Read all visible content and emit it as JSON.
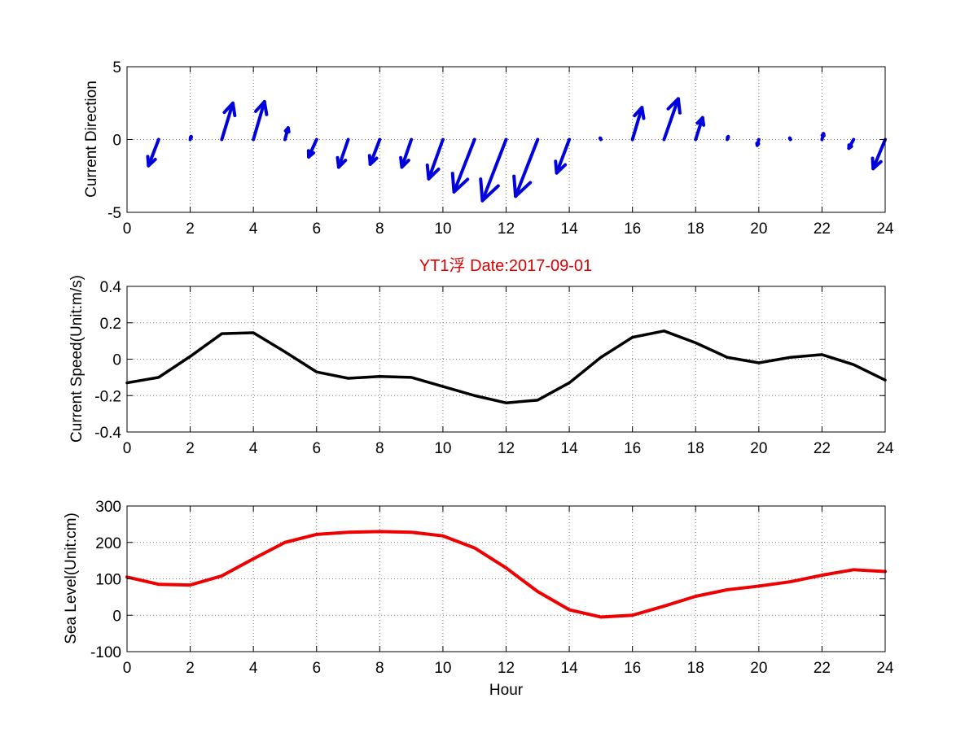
{
  "title": "YT1浮    Date:2017-09-01",
  "colors": {
    "title": "#dd0000",
    "quiver": "#0000dd",
    "speed": "#000000",
    "sea_level": "#ee0000",
    "axis": "#000000",
    "grid": "#777777",
    "background": "#ffffff"
  },
  "chart_data": [
    {
      "type": "quiver",
      "title": "",
      "xlabel": "",
      "ylabel": "Current Direction",
      "xlim": [
        0,
        24
      ],
      "ylim": [
        -5,
        5
      ],
      "xticks": [
        "0",
        "2",
        "4",
        "6",
        "8",
        "10",
        "12",
        "14",
        "16",
        "18",
        "20",
        "22",
        "24"
      ],
      "yticks": [
        "-5",
        "0",
        "5"
      ],
      "grid": true,
      "x": [
        1,
        2,
        3,
        4,
        5,
        6,
        7,
        8,
        9,
        10,
        11,
        12,
        13,
        14,
        15,
        16,
        17,
        18,
        19,
        20,
        21,
        22,
        23,
        24
      ],
      "u": [
        -0.32,
        0.03,
        0.35,
        0.35,
        0.1,
        -0.25,
        -0.3,
        -0.3,
        -0.3,
        -0.45,
        -0.65,
        -0.75,
        -0.7,
        -0.4,
        -0.02,
        0.3,
        0.45,
        0.22,
        0.03,
        -0.05,
        -0.02,
        0.05,
        -0.15,
        -0.38
      ],
      "v": [
        -1.8,
        0.2,
        2.5,
        2.6,
        0.8,
        -1.2,
        -1.9,
        -1.7,
        -1.9,
        -2.7,
        -3.6,
        -4.2,
        -3.9,
        -2.3,
        0.1,
        2.2,
        2.8,
        1.5,
        0.2,
        -0.4,
        0.1,
        0.4,
        -0.6,
        -2.0
      ],
      "units": "data"
    },
    {
      "type": "line",
      "title": "",
      "xlabel": "",
      "ylabel": "Current Speed(Unit:m/s)",
      "xlim": [
        0,
        24
      ],
      "ylim": [
        -0.4,
        0.4
      ],
      "xticks": [
        "0",
        "2",
        "4",
        "6",
        "8",
        "10",
        "12",
        "14",
        "16",
        "18",
        "20",
        "22",
        "24"
      ],
      "yticks": [
        "-0.4",
        "-0.2",
        "0",
        "0.2",
        "0.4"
      ],
      "grid": true,
      "x": [
        0,
        1,
        2,
        3,
        4,
        5,
        6,
        7,
        8,
        9,
        10,
        11,
        12,
        13,
        14,
        15,
        16,
        17,
        18,
        19,
        20,
        21,
        22,
        23,
        24
      ],
      "series": [
        {
          "values": [
            -0.13,
            -0.1,
            0.015,
            0.14,
            0.145,
            0.04,
            -0.07,
            -0.105,
            -0.095,
            -0.1,
            -0.15,
            -0.2,
            -0.24,
            -0.225,
            -0.13,
            0.01,
            0.12,
            0.155,
            0.09,
            0.01,
            -0.02,
            0.01,
            0.025,
            -0.03,
            -0.115
          ]
        }
      ]
    },
    {
      "type": "line",
      "title": "",
      "xlabel": "Hour",
      "ylabel": "Sea Level(Unit:cm)",
      "xlim": [
        0,
        24
      ],
      "ylim": [
        -100,
        300
      ],
      "xticks": [
        "0",
        "2",
        "4",
        "6",
        "8",
        "10",
        "12",
        "14",
        "16",
        "18",
        "20",
        "22",
        "24"
      ],
      "yticks": [
        "-100",
        "0",
        "100",
        "200",
        "300"
      ],
      "grid": true,
      "x": [
        0,
        1,
        2,
        3,
        4,
        5,
        6,
        7,
        8,
        9,
        10,
        11,
        12,
        13,
        14,
        15,
        16,
        17,
        18,
        19,
        20,
        21,
        22,
        23,
        24
      ],
      "series": [
        {
          "values": [
            105,
            85,
            83,
            108,
            155,
            200,
            222,
            228,
            230,
            228,
            218,
            185,
            130,
            65,
            15,
            -5,
            0,
            25,
            52,
            70,
            80,
            92,
            110,
            125,
            120
          ]
        }
      ]
    }
  ]
}
